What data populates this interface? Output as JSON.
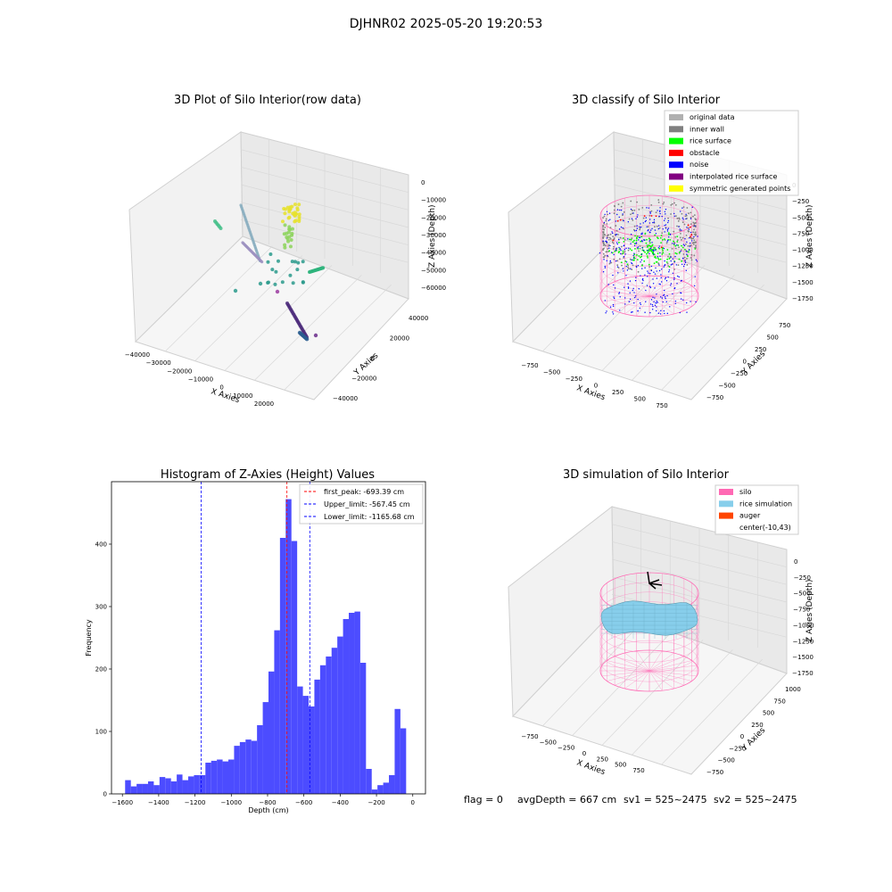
{
  "suptitle": "DJHNR02 2025-05-20 19:20:53",
  "footer": {
    "flag": "flag = 0",
    "avg": "avgDepth = 667 cm",
    "sv1": "sv1 = 525~2475",
    "sv2": "sv2 = 525~2475"
  },
  "colors": {
    "hist_bar": "#4c4cff",
    "first_peak_line": "#ff0000",
    "limit_line": "#0000ff",
    "silo_pink": "#ff69b4",
    "rice_sim": "#87ceeb",
    "auger": "#ff4500",
    "original": "#b0b0b0",
    "inner_wall": "#808080",
    "rice_surface": "#00ff00",
    "obstacle": "#ff0000",
    "noise": "#0000ff",
    "interp": "#800080",
    "symmetric": "#ffff00"
  },
  "chart_data": [
    {
      "type": "scatter",
      "title": "3D Plot of Silo Interior(row data)",
      "xlabel": "X Axies",
      "ylabel": "Y Axies",
      "zlabel": "Z Axies (Depth)",
      "xticks": [
        "−40000",
        "−30000",
        "−20000",
        "−10000",
        "0",
        "10000",
        "20000"
      ],
      "yticks": [
        "−40000",
        "−20000",
        "0",
        "20000",
        "40000"
      ],
      "zticks": [
        "0",
        "−10000",
        "−20000",
        "−30000",
        "−40000",
        "−50000",
        "−60000"
      ],
      "colormap": "viridis"
    },
    {
      "type": "scatter",
      "title": "3D classify of Silo Interior",
      "xlabel": "X Axies",
      "ylabel": "Y Axies",
      "zlabel": "Z Axies (Depth)",
      "xticks": [
        "−750",
        "−500",
        "−250",
        "0",
        "250",
        "500",
        "750"
      ],
      "yticks": [
        "−750",
        "−500",
        "−250",
        "0",
        "250",
        "500",
        "750"
      ],
      "zticks": [
        "0",
        "−250",
        "−500",
        "−750",
        "−1000",
        "−1250",
        "−1500",
        "−1750"
      ],
      "legend": [
        {
          "label": "original data",
          "color": "#b0b0b0"
        },
        {
          "label": "inner wall",
          "color": "#808080"
        },
        {
          "label": "rice surface",
          "color": "#00ff00"
        },
        {
          "label": "obstacle",
          "color": "#ff0000"
        },
        {
          "label": "noise",
          "color": "#0000ff"
        },
        {
          "label": "interpolated rice surface",
          "color": "#800080"
        },
        {
          "label": "symmetric generated points",
          "color": "#ffff00"
        }
      ]
    },
    {
      "type": "bar",
      "title": "Histogram of Z-Axies (Height) Values",
      "xlabel": "Depth (cm)",
      "ylabel": "Frequency",
      "xlim": [
        -1660,
        70
      ],
      "ylim": [
        0,
        500
      ],
      "xticks": [
        -1600,
        -1400,
        -1200,
        -1000,
        -800,
        -600,
        -400,
        -200,
        0
      ],
      "xtick_labels": [
        "−1600",
        "−1400",
        "−1200",
        "−1000",
        "−800",
        "−600",
        "−400",
        "−200",
        "0"
      ],
      "yticks": [
        0,
        100,
        200,
        300,
        400
      ],
      "bin_start": -1585,
      "bin_width": 31.6,
      "values": [
        22,
        12,
        16,
        16,
        20,
        14,
        27,
        25,
        20,
        31,
        22,
        28,
        30,
        30,
        50,
        53,
        55,
        52,
        55,
        77,
        83,
        87,
        85,
        110,
        147,
        196,
        262,
        410,
        472,
        405,
        172,
        157,
        140,
        183,
        206,
        220,
        234,
        252,
        280,
        290,
        292,
        210,
        40,
        7,
        14,
        18,
        30,
        136,
        105
      ],
      "lines": [
        {
          "name": "first_peak: -693.39 cm",
          "x": -693.39,
          "color": "#ff0000"
        },
        {
          "name": "Upper_limit: -567.45 cm",
          "x": -567.45,
          "color": "#0000ff"
        },
        {
          "name": "Lower_limit: -1165.68 cm",
          "x": -1165.68,
          "color": "#0000ff"
        }
      ]
    },
    {
      "type": "scatter",
      "title": "3D simulation of Silo Interior",
      "xlabel": "X Axies",
      "ylabel": "Y Axies",
      "zlabel": "Z Axies (Depth)",
      "xticks": [
        "−750",
        "−500",
        "−250",
        "0",
        "250",
        "500",
        "750"
      ],
      "yticks": [
        "−750",
        "−500",
        "−250",
        "0",
        "250",
        "500",
        "750",
        "1000"
      ],
      "zticks": [
        "0",
        "−250",
        "−500",
        "−750",
        "−1000",
        "−1250",
        "−1500",
        "−1750"
      ],
      "legend": [
        {
          "label": "silo",
          "color": "#ff69b4"
        },
        {
          "label": "rice simulation",
          "color": "#87ceeb"
        },
        {
          "label": "auger",
          "color": "#ff4500"
        },
        {
          "label": "center(-10,43)",
          "color": ""
        }
      ]
    }
  ]
}
